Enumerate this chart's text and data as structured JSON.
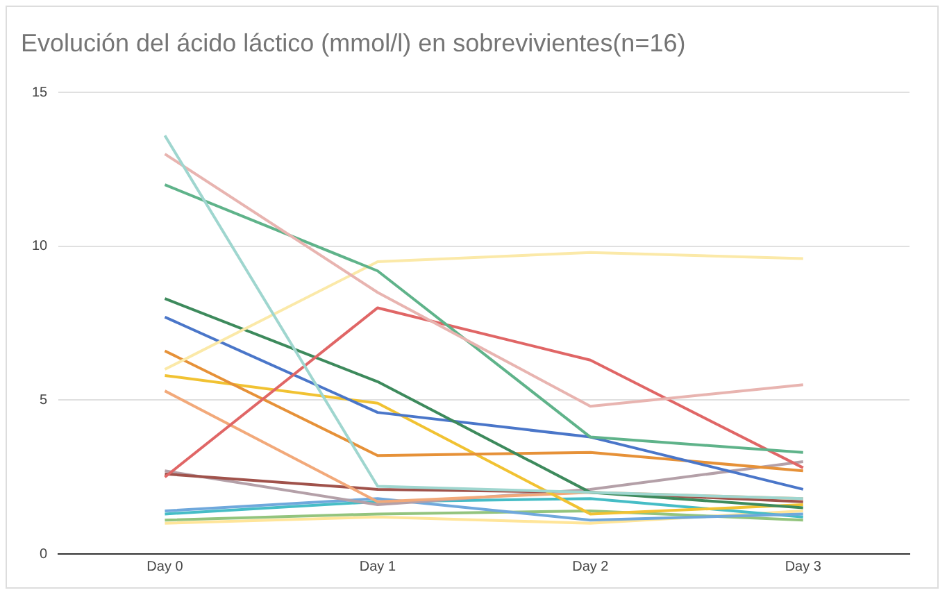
{
  "chart_data": {
    "type": "line",
    "title": "Evolución del ácido láctico (mmol/l) en sobrevivientes(n=16)",
    "categories": [
      "Day 0",
      "Day 1",
      "Day 2",
      "Day 3"
    ],
    "ylim": [
      0,
      15
    ],
    "yticks": [
      0,
      5,
      10,
      15
    ],
    "grid": "y",
    "legend": false,
    "marker": "none",
    "line_style": "solid",
    "series": [
      {
        "color": "#9fd6cf",
        "values": [
          13.6,
          2.2,
          2.0,
          1.8
        ]
      },
      {
        "color": "#e8b4b0",
        "values": [
          13.0,
          8.5,
          4.8,
          5.5
        ]
      },
      {
        "color": "#5fb38a",
        "values": [
          12.0,
          9.2,
          3.8,
          3.3
        ]
      },
      {
        "color": "#fbe9a8",
        "values": [
          6.0,
          9.5,
          9.8,
          9.6
        ]
      },
      {
        "color": "#e06666",
        "values": [
          2.5,
          8.0,
          6.3,
          2.8
        ]
      },
      {
        "color": "#3d8a5c",
        "values": [
          8.3,
          5.6,
          2.0,
          1.5
        ]
      },
      {
        "color": "#4a76c9",
        "values": [
          7.7,
          4.6,
          3.8,
          2.1
        ]
      },
      {
        "color": "#e69138",
        "values": [
          6.6,
          3.2,
          3.3,
          2.7
        ]
      },
      {
        "color": "#f1c232",
        "values": [
          5.8,
          4.9,
          1.3,
          1.6
        ]
      },
      {
        "color": "#f2a97a",
        "values": [
          5.3,
          1.7,
          2.0,
          1.8
        ]
      },
      {
        "color": "#a0524b",
        "values": [
          2.6,
          2.1,
          2.0,
          1.7
        ]
      },
      {
        "color": "#b4a0a8",
        "values": [
          2.7,
          1.6,
          2.1,
          3.0
        ]
      },
      {
        "color": "#6fa8dc",
        "values": [
          1.4,
          1.8,
          1.1,
          1.3
        ]
      },
      {
        "color": "#46bdc6",
        "values": [
          1.3,
          1.7,
          1.8,
          1.2
        ]
      },
      {
        "color": "#93c47d",
        "values": [
          1.1,
          1.3,
          1.4,
          1.1
        ]
      },
      {
        "color": "#ffe599",
        "values": [
          1.0,
          1.2,
          1.0,
          1.4
        ]
      }
    ]
  }
}
